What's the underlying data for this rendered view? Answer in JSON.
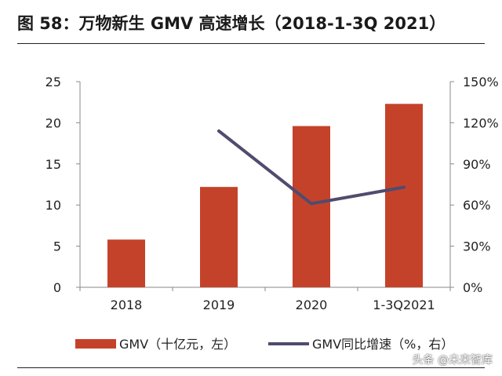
{
  "figure": {
    "title": "图 58：万物新生 GMV 高速增长（2018-1-3Q 2021）",
    "watermark": "头条 @未来智库"
  },
  "colors": {
    "bar": "#C5422A",
    "line": "#4F4C6F",
    "axis": "#888888",
    "text": "#222222"
  },
  "chart_data": {
    "type": "bar",
    "title": "万物新生 GMV 高速增长（2018-1-3Q 2021）",
    "categories": [
      "2018",
      "2019",
      "2020",
      "1-3Q2021"
    ],
    "ylim": [
      0,
      25
    ],
    "y2lim": [
      0,
      150
    ],
    "yticks": [
      "0",
      "5",
      "10",
      "15",
      "20",
      "25"
    ],
    "y2ticks": [
      "0%",
      "30%",
      "60%",
      "90%",
      "120%",
      "150%"
    ],
    "series": [
      {
        "name": "GMV（十亿元，左）",
        "kind": "bar",
        "axis": "left",
        "values": [
          5.8,
          12.2,
          19.6,
          22.3
        ]
      },
      {
        "name": "GMV同比增速（%，右）",
        "kind": "line",
        "axis": "right",
        "values": [
          null,
          114,
          61,
          73
        ]
      }
    ],
    "legend": "bottom"
  }
}
